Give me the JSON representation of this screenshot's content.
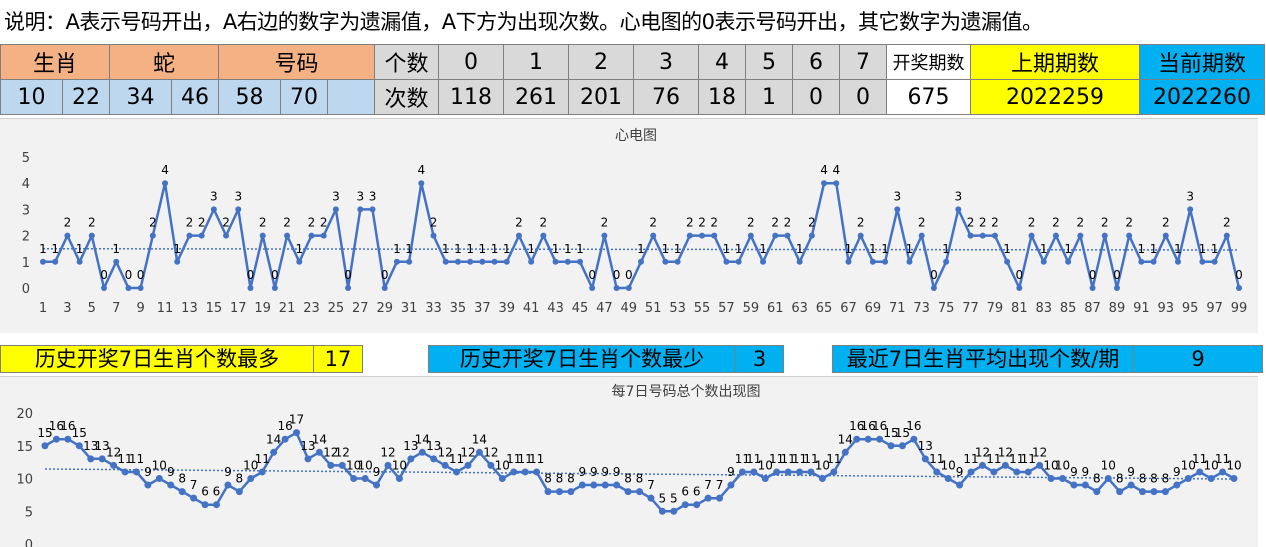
{
  "note": "说明：A表示号码开出，A右边的数字为遗漏值，A下方为出现次数。心电图的0表示号码开出，其它数字为遗漏值。",
  "top_table": {
    "zodiac_label": "生肖",
    "zodiac_value": "蛇",
    "number_label": "号码",
    "count_label": "个数",
    "times_label": "次数",
    "numbers": [
      "10",
      "22",
      "34",
      "46",
      "58",
      "70",
      ""
    ],
    "count_keys": [
      "0",
      "1",
      "2",
      "3",
      "4",
      "5",
      "6",
      "7"
    ],
    "count_values": [
      "118",
      "261",
      "201",
      "76",
      "18",
      "1",
      "0",
      "0"
    ],
    "draws_label": "开奖期数",
    "draws_value": "675",
    "prev_label": "上期期数",
    "prev_value": "2022259",
    "curr_label": "当前期数",
    "curr_value": "2022260"
  },
  "stats": {
    "max_label": "历史开奖7日生肖个数最多",
    "max_value": "17",
    "min_label": "历史开奖7日生肖个数最少",
    "min_value": "3",
    "avg_label": "最近7日生肖平均出现个数/期",
    "avg_value": "9"
  },
  "colors": {
    "line": "#4472c4",
    "salmon": "#f4b183",
    "light_blue": "#bdd7ee",
    "yellow": "#ffff00",
    "cyan": "#00b0f0"
  },
  "chart_data": [
    {
      "type": "line",
      "title": "心电图",
      "ylim": [
        0,
        5
      ],
      "yticks": [
        0,
        1,
        2,
        3,
        4,
        5
      ],
      "xticks": [
        1,
        3,
        5,
        7,
        9,
        11,
        13,
        15,
        17,
        19,
        21,
        23,
        25,
        27,
        29,
        31,
        33,
        35,
        37,
        39,
        41,
        43,
        45,
        47,
        49,
        51,
        53,
        55,
        57,
        59,
        61,
        63,
        65,
        67,
        69,
        71,
        73,
        75,
        77,
        79,
        81,
        83,
        85,
        87,
        89,
        91,
        93,
        95,
        97,
        99
      ],
      "x_start": 1,
      "values": [
        1,
        1,
        2,
        1,
        2,
        0,
        1,
        0,
        0,
        2,
        4,
        1,
        2,
        2,
        3,
        2,
        3,
        0,
        2,
        0,
        2,
        1,
        2,
        2,
        3,
        0,
        3,
        3,
        0,
        1,
        1,
        4,
        2,
        1,
        1,
        1,
        1,
        1,
        1,
        2,
        1,
        2,
        1,
        1,
        1,
        0,
        2,
        0,
        0,
        1,
        2,
        1,
        1,
        2,
        2,
        2,
        1,
        1,
        2,
        1,
        2,
        2,
        1,
        2,
        4,
        4,
        1,
        2,
        1,
        1,
        3,
        1,
        2,
        0,
        1,
        3,
        2,
        2,
        2,
        1,
        0,
        2,
        1,
        2,
        1,
        2,
        0,
        2,
        0,
        2,
        1,
        1,
        2,
        1,
        3,
        1,
        1,
        2,
        0
      ],
      "trendline": "linear dotted",
      "grid": false
    },
    {
      "type": "line",
      "title": "每7日号码总个数出现图",
      "ylim": [
        0,
        20
      ],
      "yticks": [
        0,
        5,
        10,
        15,
        20
      ],
      "values": [
        15,
        16,
        16,
        15,
        13,
        13,
        12,
        11,
        11,
        9,
        10,
        9,
        8,
        7,
        6,
        6,
        9,
        8,
        10,
        11,
        14,
        16,
        17,
        13,
        14,
        12,
        12,
        10,
        10,
        9,
        12,
        10,
        13,
        14,
        13,
        12,
        11,
        12,
        14,
        12,
        10,
        11,
        11,
        11,
        8,
        8,
        8,
        9,
        9,
        9,
        9,
        8,
        8,
        7,
        5,
        5,
        6,
        6,
        7,
        7,
        9,
        11,
        11,
        10,
        11,
        11,
        11,
        11,
        10,
        11,
        14,
        16,
        16,
        16,
        15,
        15,
        16,
        13,
        11,
        10,
        9,
        11,
        12,
        11,
        12,
        11,
        11,
        12,
        10,
        10,
        9,
        9,
        8,
        10,
        8,
        9,
        8,
        8,
        8,
        9,
        10,
        11,
        10,
        11,
        10
      ],
      "trendline": "linear dotted",
      "grid": false
    }
  ]
}
